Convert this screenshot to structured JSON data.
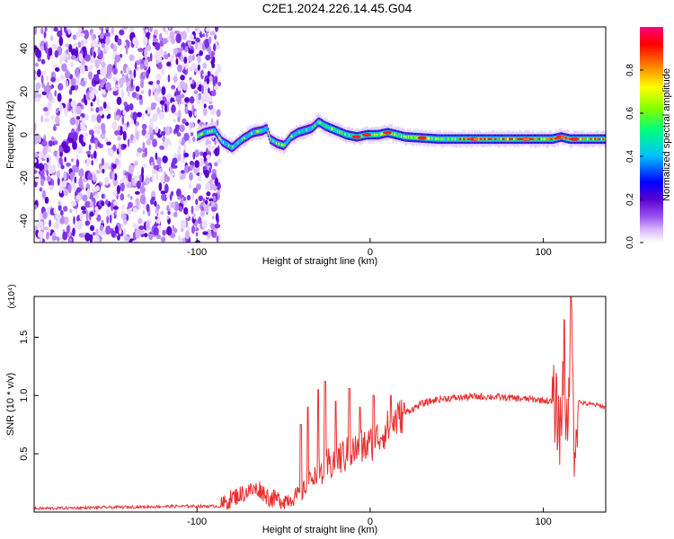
{
  "title": "C2E1.2024.226.14.45.G04",
  "chart_data": [
    {
      "type": "heatmap",
      "xlabel": "Height of straight line (km)",
      "ylabel": "Frequency (Hz)",
      "xlim": [
        -194,
        136
      ],
      "ylim": [
        -50,
        50
      ],
      "x_ticks": [
        -100,
        0,
        100
      ],
      "y_ticks": [
        -40,
        -20,
        0,
        20,
        40
      ],
      "colorbar": {
        "label": "Normalized spectral amplitude",
        "range": [
          0,
          1
        ],
        "ticks": [
          "0.0",
          "0.2",
          "0.4",
          "0.6",
          "0.8"
        ],
        "colormap": [
          "#ffffff",
          "#d8b8f8",
          "#9a54f0",
          "#5a00d0",
          "#0000ff",
          "#00bfff",
          "#00ff80",
          "#80ff00",
          "#ffff00",
          "#ff8000",
          "#ff0000",
          "#ff0080"
        ]
      },
      "noise_region_x": [
        -194,
        -87
      ],
      "ridge": {
        "x": [
          -112,
          -108,
          -96,
          -90,
          -86,
          -80,
          -74,
          -68,
          -62,
          -60,
          -58,
          -54,
          -50,
          -46,
          -42,
          -38,
          -34,
          -30,
          -26,
          -20,
          -14,
          -8,
          -2,
          4,
          10,
          20,
          40,
          60,
          80,
          95,
          105,
          110,
          115,
          120,
          128,
          136
        ],
        "y": [
          -8,
          -4,
          1,
          2,
          -3,
          -6,
          -2,
          1,
          2,
          3,
          -2,
          -4,
          -5,
          -1,
          1,
          2,
          3,
          6,
          4,
          2,
          0,
          -1,
          0,
          0,
          1,
          -1,
          -2,
          -2,
          -2,
          -2,
          -2,
          -1,
          -2,
          -2,
          -2,
          -2
        ]
      },
      "ridge_peak": [
        [
          -8,
          0.95
        ],
        [
          -2,
          0.95
        ],
        [
          10,
          0.95
        ],
        [
          30,
          0.9
        ],
        [
          60,
          0.95
        ],
        [
          90,
          1.0
        ],
        [
          110,
          1.0
        ],
        [
          118,
          1.0
        ]
      ]
    },
    {
      "type": "line",
      "xlabel": "Height of straight line (km)",
      "ylabel": "SNR (10 * v/v)",
      "multiplier_label": "(x10⁴)",
      "xlim": [
        -194,
        136
      ],
      "ylim": [
        0,
        1.85
      ],
      "x_ticks": [
        -100,
        0,
        100
      ],
      "y_ticks": [
        "0.5",
        "1.0",
        "1.5"
      ],
      "color": "#e83030",
      "series": [
        {
          "x": [
            -194,
            -150,
            -110,
            -86,
            -80,
            -70,
            -64,
            -58,
            -50,
            -40,
            -34,
            -28,
            -20,
            -12,
            -6,
            0,
            6,
            14,
            20,
            30,
            40,
            50,
            60,
            70,
            80,
            90,
            100,
            104,
            106,
            108,
            110,
            112,
            114,
            116,
            118,
            120,
            124,
            130,
            136
          ],
          "y": [
            0.03,
            0.04,
            0.05,
            0.05,
            0.12,
            0.18,
            0.2,
            0.12,
            0.1,
            0.15,
            0.3,
            0.35,
            0.45,
            0.5,
            0.55,
            0.58,
            0.66,
            0.78,
            0.85,
            0.93,
            0.97,
            0.98,
            0.99,
            0.99,
            0.98,
            0.97,
            0.96,
            0.95,
            0.92,
            0.85,
            0.7,
            1.3,
            0.5,
            1.7,
            0.55,
            0.95,
            0.93,
            0.92,
            0.9
          ]
        }
      ],
      "spikes": [
        [
          -40,
          0.75
        ],
        [
          -36,
          0.9
        ],
        [
          -30,
          1.05
        ],
        [
          -26,
          1.12
        ],
        [
          -20,
          0.95
        ],
        [
          -12,
          1.06
        ],
        [
          -6,
          0.9
        ],
        [
          2,
          1.0
        ],
        [
          12,
          1.0
        ],
        [
          112,
          1.65
        ],
        [
          116,
          1.88
        ]
      ]
    }
  ]
}
